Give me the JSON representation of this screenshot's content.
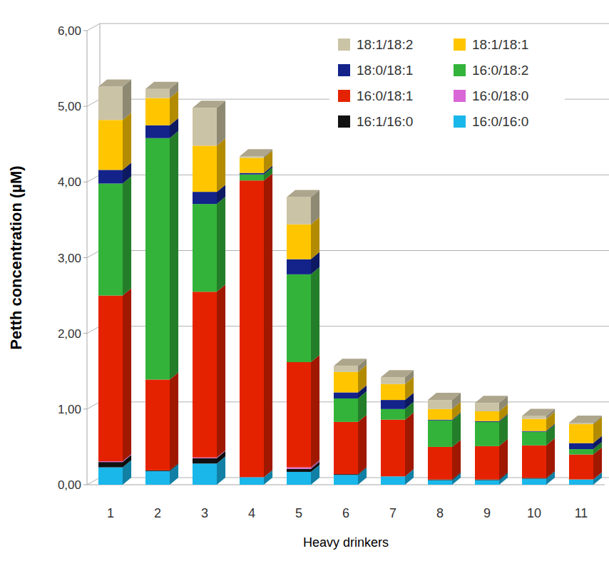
{
  "chart_data": {
    "type": "bar",
    "stacked": true,
    "grid": true,
    "legend": "top-right",
    "x_label": "Heavy drinkers",
    "y_label": "Petth concentration (µM)",
    "categories": [
      "1",
      "2",
      "3",
      "4",
      "5",
      "6",
      "7",
      "8",
      "9",
      "10",
      "11"
    ],
    "ylim": [
      0,
      6
    ],
    "yticks": [
      {
        "value": 0,
        "label": "0,00"
      },
      {
        "value": 1,
        "label": "1,00"
      },
      {
        "value": 2,
        "label": "2,00"
      },
      {
        "value": 3,
        "label": "3,00"
      },
      {
        "value": 4,
        "label": "4,00"
      },
      {
        "value": 5,
        "label": "5,00"
      },
      {
        "value": 6,
        "label": "6,00"
      }
    ],
    "series": [
      {
        "name": "16:0/16:0",
        "color": "#1ab7ea",
        "values": [
          0.23,
          0.18,
          0.28,
          0.1,
          0.17,
          0.13,
          0.11,
          0.06,
          0.06,
          0.08,
          0.07
        ]
      },
      {
        "name": "16:1/16:0",
        "color": "#111111",
        "values": [
          0.07,
          0.01,
          0.07,
          0.0,
          0.04,
          0.01,
          0.0,
          0.01,
          0.01,
          0.01,
          0.0
        ]
      },
      {
        "name": "16:0/18:0",
        "color": "#d966d6",
        "values": [
          0.01,
          0.0,
          0.01,
          0.0,
          0.02,
          0.0,
          0.0,
          0.0,
          0.0,
          0.0,
          0.0
        ]
      },
      {
        "name": "16:0/18:1",
        "color": "#e52200",
        "values": [
          2.19,
          1.2,
          2.19,
          3.92,
          1.39,
          0.69,
          0.75,
          0.43,
          0.44,
          0.43,
          0.33
        ]
      },
      {
        "name": "16:0/18:2",
        "color": "#33b33a",
        "values": [
          1.48,
          3.19,
          1.16,
          0.08,
          1.16,
          0.31,
          0.14,
          0.35,
          0.32,
          0.18,
          0.07
        ]
      },
      {
        "name": "18:0/18:1",
        "color": "#13238a",
        "values": [
          0.18,
          0.17,
          0.16,
          0.02,
          0.2,
          0.08,
          0.12,
          0.01,
          0.01,
          0.01,
          0.08
        ]
      },
      {
        "name": "18:1/18:1",
        "color": "#ffc600",
        "values": [
          0.66,
          0.36,
          0.61,
          0.2,
          0.46,
          0.27,
          0.21,
          0.14,
          0.13,
          0.16,
          0.25
        ]
      },
      {
        "name": "18:1/18:2",
        "color": "#cbc3a5",
        "values": [
          0.44,
          0.12,
          0.5,
          0.02,
          0.36,
          0.08,
          0.09,
          0.12,
          0.11,
          0.04,
          0.02
        ]
      }
    ]
  }
}
